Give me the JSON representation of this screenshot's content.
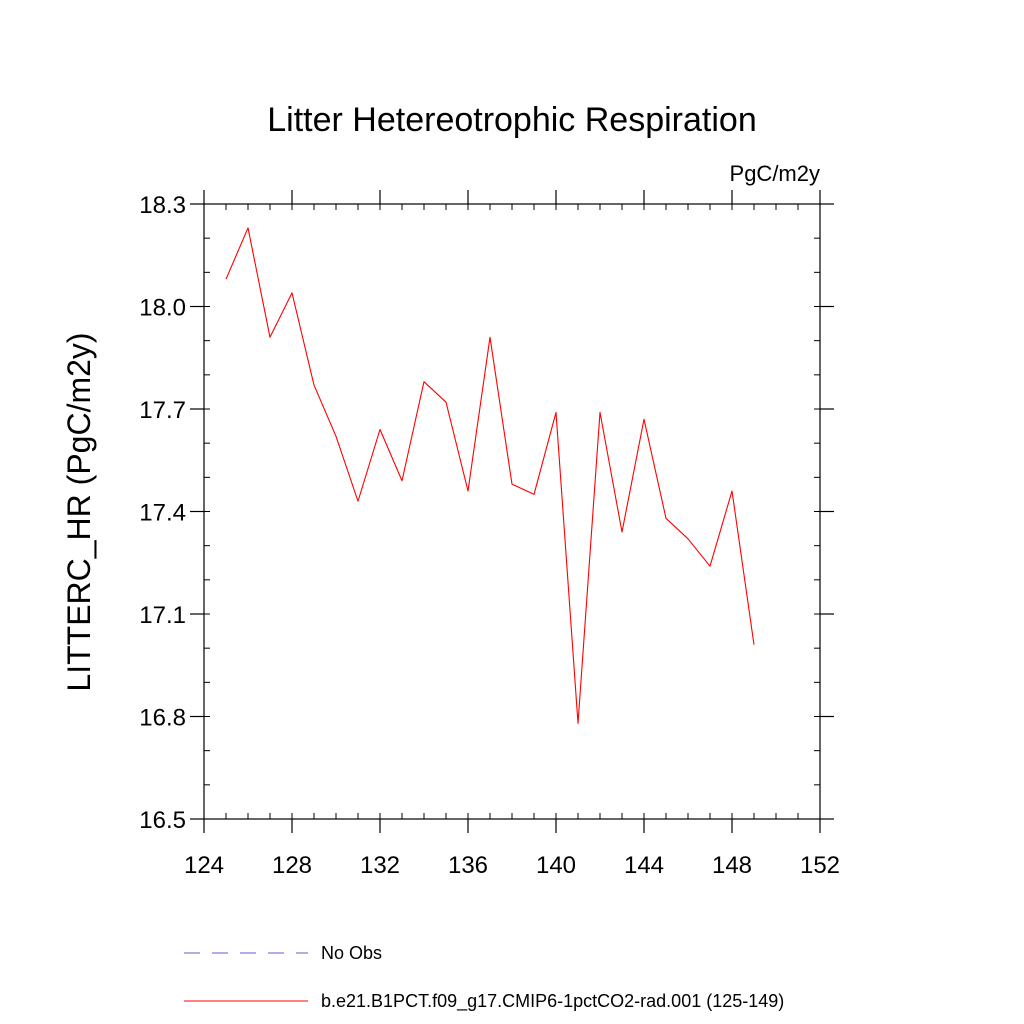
{
  "chart_data": {
    "type": "line",
    "title": "Litter Hetereotrophic Respiration",
    "units_label": "PgC/m2y",
    "xlabel": "",
    "ylabel": "LITTERC_HR  (PgC/m2y)",
    "xlim": [
      124,
      152
    ],
    "ylim": [
      16.5,
      18.3
    ],
    "xticks": [
      124,
      128,
      132,
      136,
      140,
      144,
      148,
      152
    ],
    "xtick_labels": [
      "124",
      "128",
      "132",
      "136",
      "140",
      "144",
      "148",
      "152"
    ],
    "yticks": [
      16.5,
      16.8,
      17.1,
      17.4,
      17.7,
      18.0,
      18.3
    ],
    "ytick_labels": [
      "16.5",
      "16.8",
      "17.1",
      "17.4",
      "17.7",
      "18.0",
      "18.3"
    ],
    "grid": false,
    "legend_position": "bottom",
    "x": [
      125,
      126,
      127,
      128,
      129,
      130,
      131,
      132,
      133,
      134,
      135,
      136,
      137,
      138,
      139,
      140,
      141,
      142,
      143,
      144,
      145,
      146,
      147,
      148,
      149
    ],
    "series": [
      {
        "name": "b.e21.B1PCT.f09_g17.CMIP6-1pctCO2-rad.001 (125-149)",
        "color": "#ff0000",
        "dash": "solid",
        "values": [
          18.08,
          18.23,
          17.91,
          18.04,
          17.77,
          17.62,
          17.43,
          17.64,
          17.49,
          17.78,
          17.72,
          17.46,
          17.91,
          17.48,
          17.45,
          17.69,
          16.78,
          17.69,
          17.34,
          17.67,
          17.38,
          17.32,
          17.24,
          17.46,
          17.01
        ]
      }
    ],
    "legend": [
      {
        "label": "No Obs",
        "color": "#6a5acd",
        "dash": "dashed"
      },
      {
        "label": "b.e21.B1PCT.f09_g17.CMIP6-1pctCO2-rad.001 (125-149)",
        "color": "#ff0000",
        "dash": "solid"
      }
    ]
  }
}
